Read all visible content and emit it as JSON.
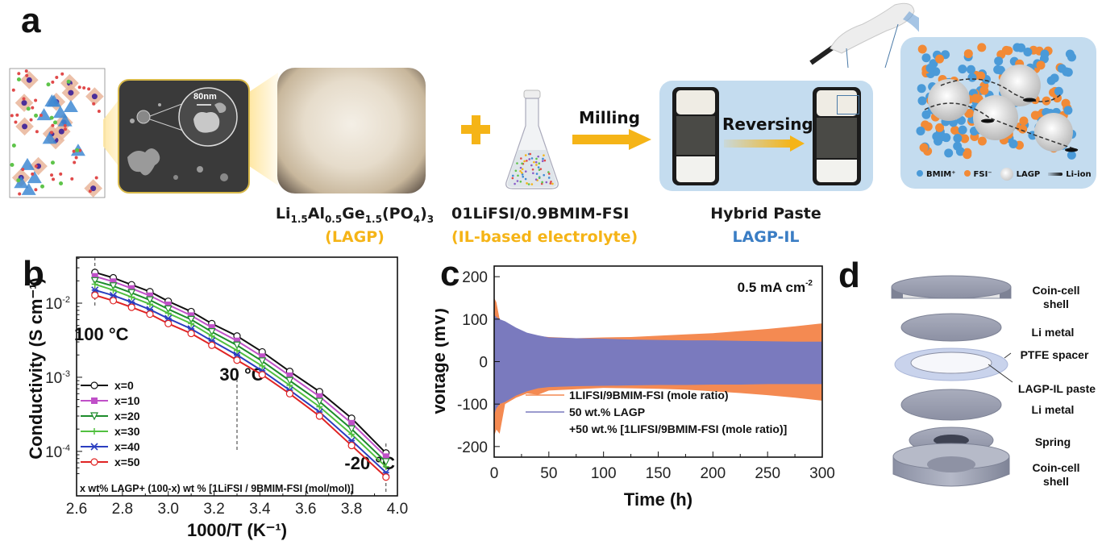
{
  "panel_a": {
    "letter": "a",
    "sem_scale_bar": "80nm",
    "lagp_formula": {
      "parts": [
        "Li",
        "1.5",
        "Al",
        "0.5",
        "Ge",
        "1.5",
        "(PO",
        "4",
        ")",
        "3"
      ]
    },
    "lagp_name": "(LAGP)",
    "plus_symbol": "+",
    "electrolyte_formula": "01LiFSI/0.9BMIM-FSI",
    "electrolyte_name": "(IL-based electrolyte)",
    "milling_label": "Milling",
    "reversing_label": "Reversing",
    "hybrid_title": "Hybrid Paste",
    "hybrid_name": "LAGP-IL",
    "legend": [
      {
        "label": "BMIM⁺",
        "color": "#4a9ad8",
        "shape": "dot"
      },
      {
        "label": "FSI⁻",
        "color": "#f28a36",
        "shape": "dot"
      },
      {
        "label": "LAGP",
        "color": "#d8d8d8",
        "shape": "sphere"
      },
      {
        "label": "Li-ion",
        "color": "#111111",
        "shape": "comet"
      }
    ],
    "colors": {
      "arrow": "#f5b417",
      "panel_bg": "#c4dcef",
      "orange_text": "#f5b417",
      "blue_text": "#3a7dc4"
    }
  },
  "panel_d": {
    "letter": "d",
    "layers": [
      {
        "label_lines": [
          "Coin-cell",
          "shell"
        ]
      },
      {
        "label_lines": [
          "Li metal"
        ]
      },
      {
        "label_lines": [
          "PTFE spacer"
        ]
      },
      {
        "label_lines": [
          "LAGP-IL paste"
        ]
      },
      {
        "label_lines": [
          "Li metal"
        ]
      },
      {
        "label_lines": [
          "Spring"
        ]
      },
      {
        "label_lines": [
          "Coin-cell",
          "shell"
        ]
      }
    ]
  },
  "chart_data": [
    {
      "id": "b",
      "letter": "b",
      "type": "line",
      "title": "",
      "xlabel": "1000/T (K⁻¹)",
      "ylabel": "Conductivity (S cm⁻¹)",
      "xlim": [
        2.6,
        4.0
      ],
      "ylim_log10": [
        -4.6,
        -1.38
      ],
      "y_scale": "log",
      "xticks": [
        "2.6",
        "2.8",
        "3.0",
        "3.2",
        "3.4",
        "3.6",
        "3.8",
        "4.0"
      ],
      "xtick_values": [
        2.6,
        2.8,
        3.0,
        3.2,
        3.4,
        3.6,
        3.8,
        4.0
      ],
      "yticks": [
        {
          "label_base": "10",
          "exp": "-2",
          "value": -2
        },
        {
          "label_base": "10",
          "exp": "-3",
          "value": -3
        },
        {
          "label_base": "10",
          "exp": "-4",
          "value": -4
        }
      ],
      "grid": false,
      "legend_position": "left",
      "annotations": [
        {
          "text": "100 °C",
          "x": 2.68
        },
        {
          "text": "30 °C",
          "x": 3.3
        },
        {
          "text": "-20 °C",
          "x": 3.95
        }
      ],
      "footnote": "x wt% LAGP+ (100-x) wt % [1LiFSI / 9BMIM-FSI (mol/mol)]",
      "x": [
        2.68,
        2.76,
        2.84,
        2.92,
        3.0,
        3.1,
        3.19,
        3.3,
        3.41,
        3.53,
        3.66,
        3.8,
        3.95
      ],
      "series": [
        {
          "name": "x=0",
          "color": "#111111",
          "marker": "circle",
          "values": [
            0.026,
            0.022,
            0.0177,
            0.0143,
            0.0106,
            0.0077,
            0.0053,
            0.0036,
            0.0022,
            0.0012,
            0.00064,
            0.00028,
            9.5e-05
          ]
        },
        {
          "name": "x=10",
          "color": "#c050c8",
          "marker": "star",
          "values": [
            0.023,
            0.0195,
            0.0158,
            0.0126,
            0.0095,
            0.0068,
            0.0047,
            0.0031,
            0.0019,
            0.00105,
            0.00055,
            0.00024,
            8.5e-05
          ]
        },
        {
          "name": "x=20",
          "color": "#1e8c2c",
          "marker": "triangle-down",
          "values": [
            0.02,
            0.017,
            0.0138,
            0.011,
            0.0083,
            0.006,
            0.0041,
            0.0027,
            0.00165,
            0.0009,
            0.00047,
            0.0002,
            7.2e-05
          ]
        },
        {
          "name": "x=30",
          "color": "#52c040",
          "marker": "plus",
          "values": [
            0.018,
            0.015,
            0.0121,
            0.0097,
            0.0073,
            0.0053,
            0.0036,
            0.0023,
            0.00142,
            0.00078,
            0.0004,
            0.00017,
            6.2e-05
          ]
        },
        {
          "name": "x=40",
          "color": "#2a3ec0",
          "marker": "asterisk",
          "values": [
            0.015,
            0.0127,
            0.0103,
            0.0082,
            0.0062,
            0.0045,
            0.0031,
            0.002,
            0.00122,
            0.00067,
            0.00034,
            0.00014,
            5.2e-05
          ]
        },
        {
          "name": "x=50",
          "color": "#e02424",
          "marker": "diamond",
          "values": [
            0.0128,
            0.0108,
            0.0088,
            0.0071,
            0.0053,
            0.0039,
            0.0027,
            0.0017,
            0.00108,
            0.0006,
            0.0003,
            0.00012,
            4.5e-05
          ]
        }
      ]
    },
    {
      "id": "c",
      "letter": "c",
      "type": "area",
      "title": "",
      "xlabel": "Time (h)",
      "ylabel": "Voltage (mV)",
      "xlim": [
        0,
        300
      ],
      "ylim": [
        -225,
        225
      ],
      "xticks": [
        "0",
        "50",
        "100",
        "150",
        "200",
        "250",
        "300"
      ],
      "xtick_values": [
        0,
        50,
        100,
        150,
        200,
        250,
        300
      ],
      "yticks": [
        "-200",
        "-100",
        "0",
        "100",
        "200"
      ],
      "ytick_values": [
        -200,
        -100,
        0,
        100,
        200
      ],
      "grid": false,
      "legend_position": "bottom-left",
      "annotation": {
        "text": "0.5 mA cm",
        "sup": "-2"
      },
      "x": [
        0,
        2,
        5,
        10,
        20,
        30,
        40,
        50,
        75,
        100,
        125,
        150,
        175,
        200,
        225,
        250,
        275,
        300
      ],
      "series": [
        {
          "name": "1LIFSI/9BMIM-FSI (mole ratio)",
          "legend_lines": [
            "1LIFSI/9BMIM-FSI (mole ratio)"
          ],
          "color": "#f48a52",
          "upper": [
            150,
            140,
            100,
            90,
            75,
            65,
            60,
            58,
            55,
            57,
            58,
            61,
            64,
            67,
            72,
            77,
            83,
            90
          ],
          "lower": [
            -175,
            -160,
            -170,
            -100,
            -85,
            -75,
            -78,
            -68,
            -65,
            -62,
            -63,
            -64,
            -66,
            -70,
            -74,
            -79,
            -85,
            -92
          ]
        },
        {
          "name": "50 wt.% LAGP +50 wt.% [1LIFSI/9BMIM-FSI (mole ratio)]",
          "legend_lines": [
            "50 wt.% LAGP",
            "+50 wt.% [1LIFSI/9BMIM-FSI (mole ratio)]"
          ],
          "color": "#7a7abe",
          "upper": [
            110,
            105,
            100,
            95,
            80,
            68,
            62,
            57,
            55,
            54,
            52,
            51,
            50,
            50,
            49,
            48,
            47,
            47
          ],
          "lower": [
            -125,
            -110,
            -100,
            -95,
            -80,
            -70,
            -63,
            -60,
            -58,
            -57,
            -56,
            -55,
            -55,
            -54,
            -54,
            -53,
            -53,
            -53
          ]
        }
      ]
    }
  ]
}
